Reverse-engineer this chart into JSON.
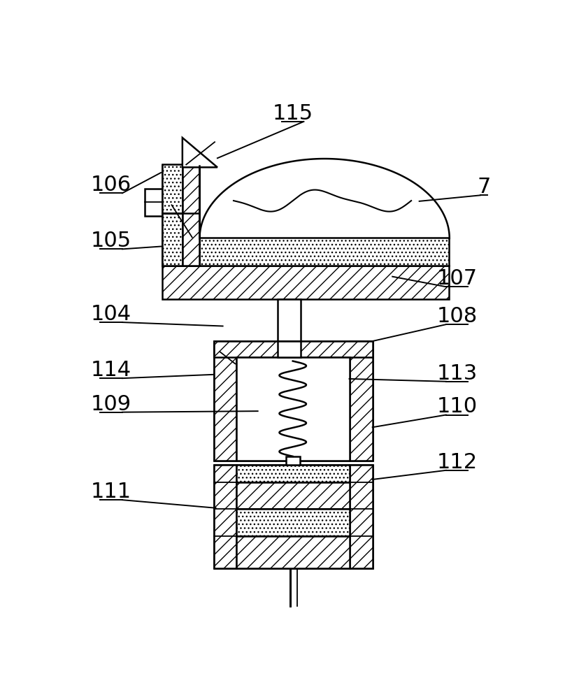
{
  "bg_color": "#ffffff",
  "annotations": [
    [
      "106",
      68,
      188,
      160,
      165,
      true
    ],
    [
      "105",
      68,
      292,
      160,
      302,
      true
    ],
    [
      "115",
      405,
      55,
      265,
      138,
      true
    ],
    [
      "7",
      760,
      192,
      640,
      218,
      false
    ],
    [
      "107",
      710,
      362,
      590,
      358,
      false
    ],
    [
      "104",
      68,
      428,
      275,
      450,
      true
    ],
    [
      "108",
      710,
      432,
      553,
      478,
      false
    ],
    [
      "114",
      68,
      532,
      258,
      540,
      true
    ],
    [
      "113",
      710,
      538,
      510,
      548,
      false
    ],
    [
      "109",
      68,
      595,
      340,
      608,
      true
    ],
    [
      "110",
      710,
      600,
      553,
      638,
      false
    ],
    [
      "111",
      68,
      758,
      262,
      788,
      true
    ],
    [
      "112",
      710,
      703,
      553,
      735,
      false
    ]
  ],
  "label_fontsize": 22,
  "lw": 1.8,
  "lw_thin": 1.3
}
